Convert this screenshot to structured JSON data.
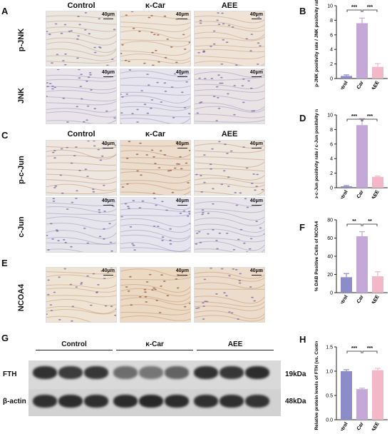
{
  "panel_letters": [
    "A",
    "B",
    "C",
    "D",
    "E",
    "F",
    "G",
    "H"
  ],
  "groups": [
    "Control",
    "κ-Car",
    "AEE"
  ],
  "scale_bar": "40μm",
  "rows": {
    "pjnk": "p-JNK",
    "jnk": "JNK",
    "pcjun": "p-c-Jun",
    "cjun": "c-Jun",
    "ncoa4": "NCOA4"
  },
  "blot": {
    "groups": [
      "Control",
      "κ-Car",
      "AEE"
    ],
    "fth_label": "FTH",
    "actin_label": "β-actin",
    "fth_kda": "19kDa",
    "actin_kda": "48kDa"
  },
  "colors": {
    "control": "#8c8cc8",
    "kcar": "#c4a8d8",
    "aee": "#f3b8c8"
  },
  "chart_data": [
    {
      "panel": "B",
      "type": "bar",
      "categories": [
        "Control",
        "κ-Car",
        "AEE"
      ],
      "values": [
        0.35,
        7.6,
        1.6
      ],
      "errors": [
        0.15,
        0.7,
        0.45
      ],
      "ylabel": "p-JNK positivity rate / JNK positivity rate",
      "ylim": [
        0,
        10
      ],
      "yticks": [
        "0",
        "2",
        "4",
        "6",
        "8",
        "10"
      ],
      "significance": [
        "***",
        "***"
      ]
    },
    {
      "panel": "D",
      "type": "bar",
      "categories": [
        "Control",
        "κ-Car",
        "AEE"
      ],
      "values": [
        0.2,
        8.6,
        1.5
      ],
      "errors": [
        0.1,
        0.9,
        0.1
      ],
      "ylabel": "p-c-Jun positivity rate / c-Jun positivity rate",
      "ylim": [
        0,
        10
      ],
      "yticks": [
        "0",
        "2",
        "4",
        "6",
        "8",
        "10"
      ],
      "significance": [
        "***",
        "***"
      ]
    },
    {
      "panel": "F",
      "type": "bar",
      "categories": [
        "Control",
        "κ-Car",
        "AEE"
      ],
      "values": [
        17,
        62,
        18
      ],
      "errors": [
        4,
        5,
        5
      ],
      "ylabel": "% DAB Positive Cells of NCOA4",
      "ylim": [
        0,
        80
      ],
      "yticks": [
        "0",
        "20",
        "40",
        "60",
        "80"
      ],
      "significance": [
        "**",
        "**"
      ]
    },
    {
      "panel": "H",
      "type": "bar",
      "categories": [
        "Control",
        "κ-Car",
        "AEE"
      ],
      "values": [
        1.0,
        0.63,
        1.02
      ],
      "errors": [
        0.03,
        0.02,
        0.04
      ],
      "ylabel": "Relative protein levels of FTH (vs. Control)",
      "ylim": [
        0,
        1.5
      ],
      "yticks": [
        "0.0",
        "0.5",
        "1.0",
        "1.5"
      ],
      "significance": [
        "***",
        "***"
      ]
    }
  ]
}
